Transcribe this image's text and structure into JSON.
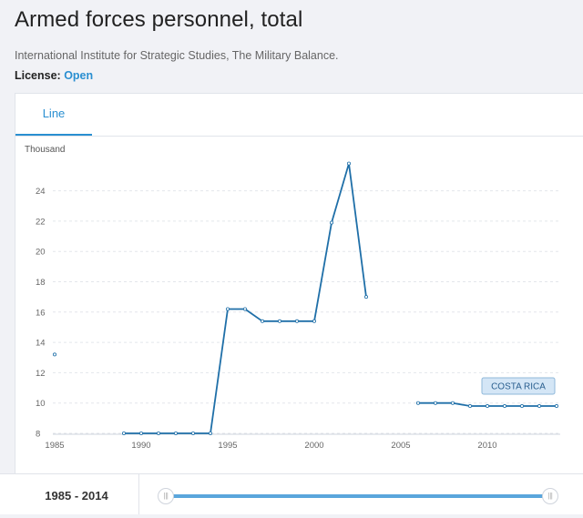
{
  "header": {
    "title": "Armed forces personnel, total",
    "source": "International Institute for Strategic Studies, The Military Balance.",
    "license_label": "License:",
    "license_value": "Open"
  },
  "tabs": [
    {
      "label": "Line",
      "active": true
    }
  ],
  "range": {
    "start": "1985",
    "separator": "-",
    "end": "2014"
  },
  "colors": {
    "accent": "#2a8fd1",
    "series": "#1f6fa8",
    "slider": "#5aa6dc"
  },
  "icons": {
    "slider_handle": "grip-handle-icon"
  },
  "chart_data": {
    "type": "line",
    "unit_label": "Thousand",
    "xlim": [
      1985,
      2015
    ],
    "ylim": [
      7.5,
      26.5
    ],
    "x_ticks": [
      1985,
      1990,
      1995,
      2000,
      2005,
      2010
    ],
    "y_ticks": [
      8,
      10,
      12,
      14,
      16,
      18,
      20,
      22,
      24
    ],
    "grid": true,
    "series": [
      {
        "name": "COSTA RICA",
        "points": [
          [
            1985,
            13.2
          ],
          [
            1989,
            8
          ],
          [
            1990,
            8
          ],
          [
            1991,
            8
          ],
          [
            1992,
            8
          ],
          [
            1993,
            8
          ],
          [
            1994,
            8
          ],
          [
            1995,
            16.2
          ],
          [
            1996,
            16.2
          ],
          [
            1997,
            15.4
          ],
          [
            1998,
            15.4
          ],
          [
            1999,
            15.4
          ],
          [
            2000,
            15.4
          ],
          [
            2001,
            21.9
          ],
          [
            2002,
            25.8
          ],
          [
            2003,
            17
          ],
          [
            2006,
            10
          ],
          [
            2007,
            10
          ],
          [
            2008,
            10
          ],
          [
            2009,
            9.8
          ],
          [
            2010,
            9.8
          ],
          [
            2011,
            9.8
          ],
          [
            2012,
            9.8
          ],
          [
            2013,
            9.8
          ],
          [
            2014,
            9.8
          ]
        ]
      }
    ]
  }
}
